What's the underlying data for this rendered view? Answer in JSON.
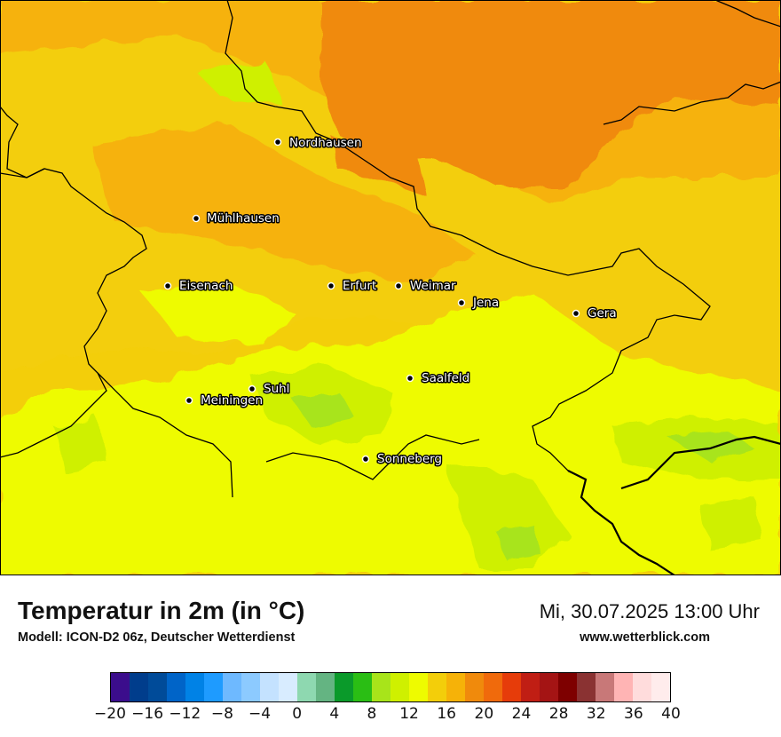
{
  "title": "Temperatur in 2m (in °C)",
  "model_line": "Modell: ICON-D2 06z, Deutscher Wetterdienst",
  "datetime": "Mi, 30.07.2025 13:00 Uhr",
  "website": "www.wetterblick.com",
  "colors": {
    "orange_dark": "#f08a0c",
    "orange_mid": "#f6b208",
    "yellow_gold": "#f3ce0a",
    "yellow": "#eefb00",
    "lime": "#cff000",
    "green_light": "#a8e41a",
    "border": "#000000"
  },
  "cities": [
    {
      "name": "Nordhausen"
    },
    {
      "name": "Mühlhausen"
    },
    {
      "name": "Eisenach"
    },
    {
      "name": "Erfurt"
    },
    {
      "name": "Weimar"
    },
    {
      "name": "Jena"
    },
    {
      "name": "Gera"
    },
    {
      "name": "Saalfeld"
    },
    {
      "name": "Suhl"
    },
    {
      "name": "Meiningen"
    },
    {
      "name": "Sonneberg"
    }
  ],
  "legend": {
    "tick_labels": [
      "−20",
      "−16",
      "−12",
      "−8",
      "−4",
      "0",
      "4",
      "8",
      "12",
      "16",
      "20",
      "24",
      "28",
      "32",
      "36",
      "40"
    ],
    "min": -20,
    "max": 40,
    "step": 2,
    "colors": [
      "#3b0d8c",
      "#003d8c",
      "#004b99",
      "#0064c8",
      "#0082e6",
      "#1e9bff",
      "#6eb9ff",
      "#8ccaff",
      "#c4e2ff",
      "#d8ecff",
      "#8ed8b0",
      "#64b482",
      "#0a9a2a",
      "#2abe14",
      "#a8e41a",
      "#cff000",
      "#eefb00",
      "#f3ce0a",
      "#f6b208",
      "#f08a0c",
      "#f06a0c",
      "#e63c0a",
      "#c01e14",
      "#a41414",
      "#7e0000",
      "#8a3232",
      "#c87878",
      "#ffb4b4",
      "#ffdcdc",
      "#ffecec"
    ]
  }
}
